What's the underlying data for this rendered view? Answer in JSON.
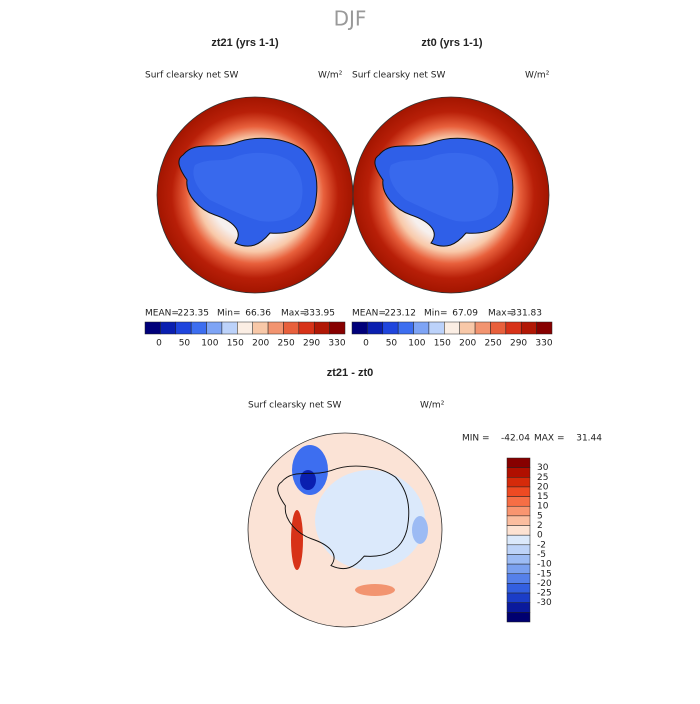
{
  "title": "DJF",
  "panels": [
    {
      "title": "zt21 (yrs 1-1)",
      "subtitle": "Surf clearsky net SW",
      "units": "W/m²",
      "stats": [
        {
          "label": "MEAN=",
          "value": 223.35
        },
        {
          "label": "Min=",
          "value": 66.36
        },
        {
          "label": "Max=",
          "value": 333.95
        }
      ],
      "colorbar": {
        "colors": [
          "#00007a",
          "#0a1fb0",
          "#1f45dd",
          "#3d6ef0",
          "#7ea4f5",
          "#bcd2fa",
          "#fbeee4",
          "#f8c8a8",
          "#f29470",
          "#e8603c",
          "#d73218",
          "#b11705",
          "#870000"
        ],
        "labels": [
          0,
          50,
          100,
          150,
          200,
          250,
          290,
          330
        ]
      }
    },
    {
      "title": "zt0 (yrs 1-1)",
      "subtitle": "Surf clearsky net SW",
      "units": "W/m²",
      "stats": [
        {
          "label": "MEAN=",
          "value": 223.12
        },
        {
          "label": "Min=",
          "value": 67.09
        },
        {
          "label": "Max=",
          "value": 331.83
        }
      ],
      "colorbar": {
        "colors": [
          "#00007a",
          "#0a1fb0",
          "#1f45dd",
          "#3d6ef0",
          "#7ea4f5",
          "#bcd2fa",
          "#fbeee4",
          "#f8c8a8",
          "#f29470",
          "#e8603c",
          "#d73218",
          "#b11705",
          "#870000"
        ],
        "labels": [
          0,
          50,
          100,
          150,
          200,
          250,
          290,
          330
        ]
      }
    },
    {
      "title": "zt21 - zt0",
      "subtitle": "Surf clearsky net SW",
      "units": "W/m²",
      "stats": [
        {
          "label": "MIN =",
          "value": -42.04
        },
        {
          "label": "MAX =",
          "value": 31.44
        }
      ],
      "colorbar": {
        "colors": [
          "#870000",
          "#b00f00",
          "#d52a0a",
          "#ee4a22",
          "#f66e45",
          "#f99570",
          "#fbbd9f",
          "#fde2d2",
          "#dbe9fb",
          "#bdd3f8",
          "#9cbbf4",
          "#7aa0ef",
          "#5580ea",
          "#335fe0",
          "#1b3dc8",
          "#0a1a9c",
          "#000070"
        ],
        "labels": [
          30,
          25,
          20,
          15,
          10,
          5,
          2,
          0,
          -2,
          -5,
          -10,
          -15,
          -20,
          -25,
          -30
        ]
      }
    }
  ]
}
